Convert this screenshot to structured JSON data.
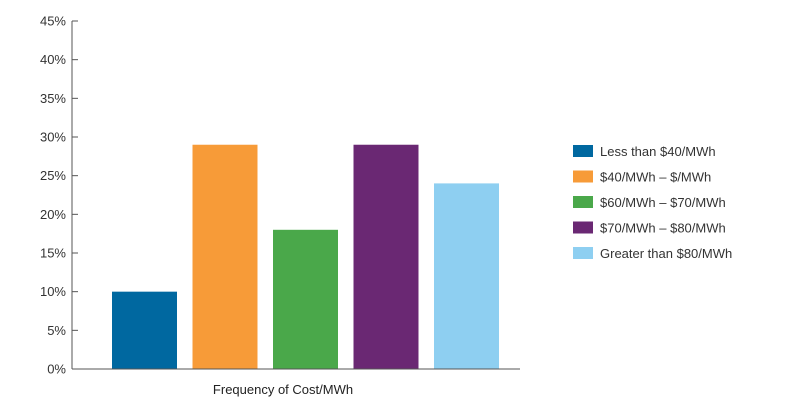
{
  "chart_data": {
    "type": "bar",
    "xlabel": "Frequency of Cost/MWh",
    "ylabel": "",
    "ylim": [
      0,
      45
    ],
    "y_ticks": [
      0,
      5,
      10,
      15,
      20,
      25,
      30,
      35,
      40,
      45
    ],
    "y_tick_suffix": "%",
    "grid": false,
    "legend_position": "right",
    "series": [
      {
        "name": "Less than $40/MWh",
        "value": 10,
        "color": "#0068a0"
      },
      {
        "name": "$40/MWh – $/MWh",
        "value": 29,
        "color": "#f79b38"
      },
      {
        "name": "$60/MWh – $70/MWh",
        "value": 18,
        "color": "#4aa84a"
      },
      {
        "name": "$70/MWh – $80/MWh",
        "value": 29,
        "color": "#6a2873"
      },
      {
        "name": "Greater than $80/MWh",
        "value": 24,
        "color": "#8ecff1"
      }
    ]
  }
}
